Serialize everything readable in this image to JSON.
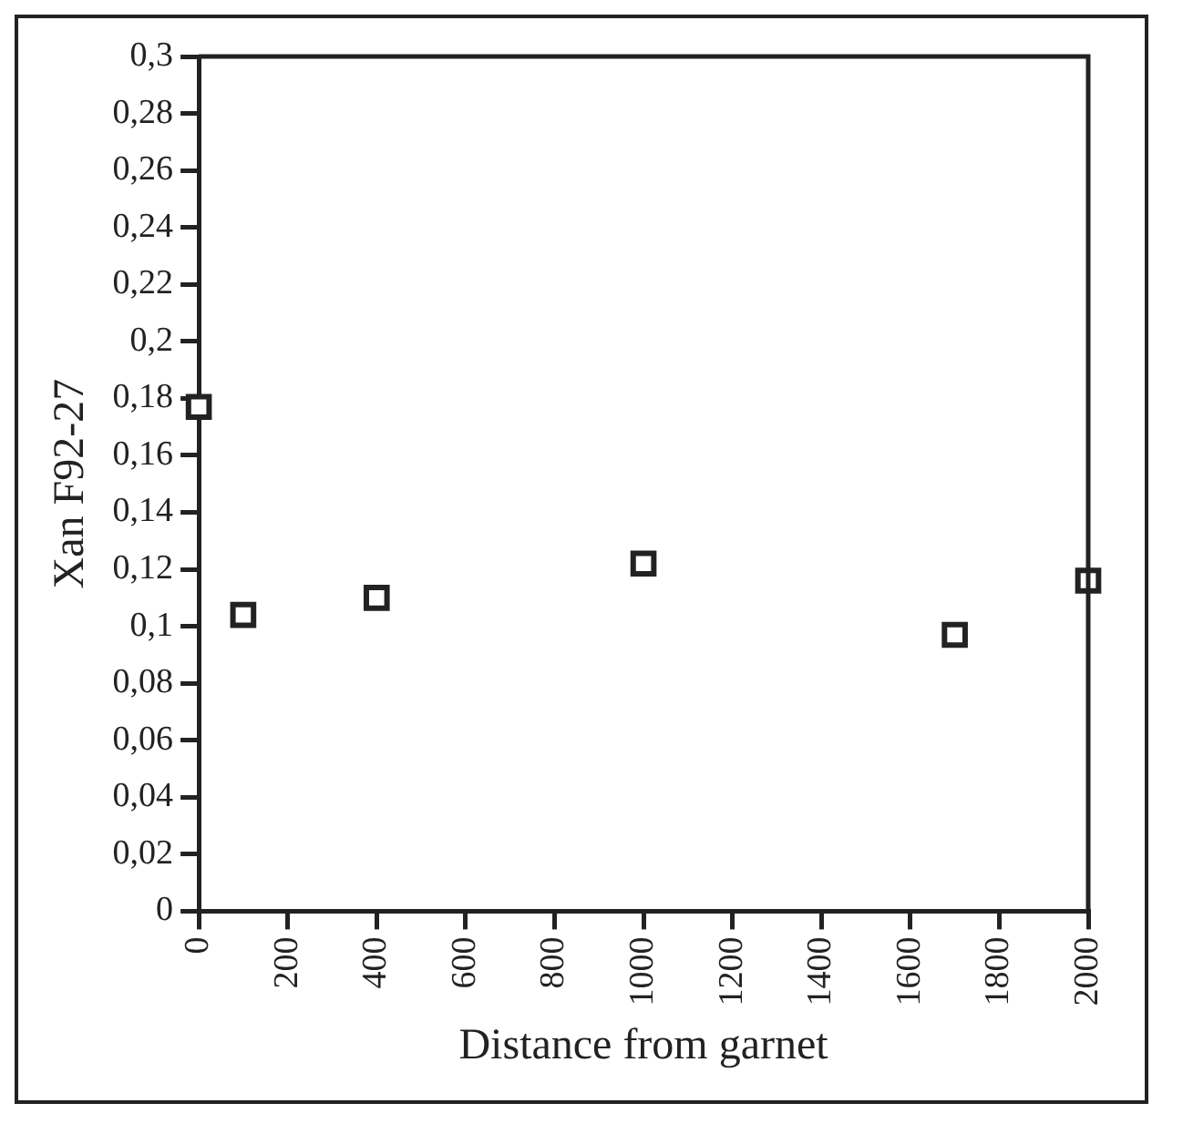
{
  "chart_data": {
    "type": "scatter",
    "xlabel": "Distance from garnet",
    "ylabel": "Xan F92-27",
    "x": [
      0,
      100,
      400,
      1000,
      1700,
      2000
    ],
    "series": [
      {
        "color": "#222222",
        "values": [
          0.177,
          0.104,
          0.11,
          0.122,
          0.097,
          0.116
        ]
      }
    ],
    "marker": "square",
    "grid": false,
    "legend": false,
    "xlim": [
      0,
      2000
    ],
    "xticks": [
      0,
      200,
      400,
      600,
      800,
      1000,
      1200,
      1400,
      1600,
      1800,
      2000
    ],
    "ylim": [
      0,
      0.3
    ],
    "yticks": [
      {
        "value": 0,
        "label": "0"
      },
      {
        "value": 0.02,
        "label": "0,02"
      },
      {
        "value": 0.04,
        "label": "0,04"
      },
      {
        "value": 0.06,
        "label": "0,06"
      },
      {
        "value": 0.08,
        "label": "0,08"
      },
      {
        "value": 0.1,
        "label": "0,1"
      },
      {
        "value": 0.12,
        "label": "0,12"
      },
      {
        "value": 0.14,
        "label": "0,14"
      },
      {
        "value": 0.16,
        "label": "0,16"
      },
      {
        "value": 0.18,
        "label": "0,18"
      },
      {
        "value": 0.2,
        "label": "0,2"
      },
      {
        "value": 0.22,
        "label": "0,22"
      },
      {
        "value": 0.24,
        "label": "0,24"
      },
      {
        "value": 0.26,
        "label": "0,26"
      },
      {
        "value": 0.28,
        "label": "0,28"
      },
      {
        "value": 0.3,
        "label": "0,3"
      }
    ]
  }
}
